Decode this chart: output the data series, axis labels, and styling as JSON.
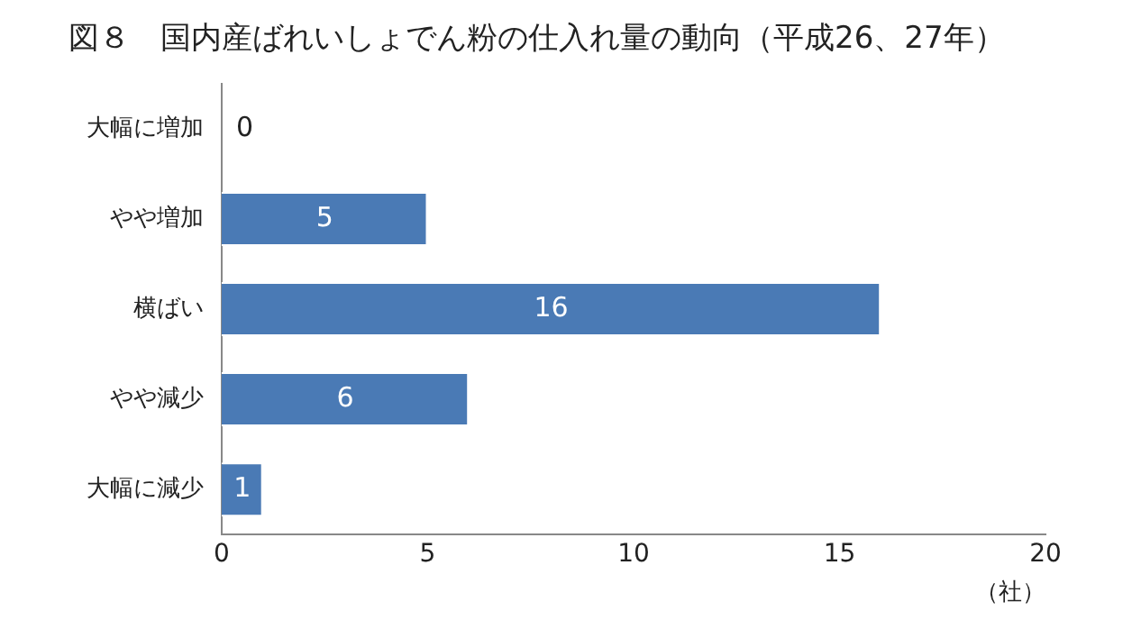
{
  "chart_data": {
    "type": "bar",
    "orientation": "horizontal",
    "title": "図８　国内産ばれいしょでん粉の仕入れ量の動向（平成26、27年）",
    "xlabel": "（社）",
    "categories": [
      "大幅に増加",
      "やや増加",
      "横ばい",
      "やや減少",
      "大幅に減少"
    ],
    "values": [
      0,
      5,
      16,
      6,
      1
    ],
    "color": "#4a7ab5",
    "xlim": [
      0,
      20
    ],
    "xticks": [
      0,
      5,
      10,
      15,
      20
    ],
    "grid": false,
    "legend": false,
    "data_labels": true
  }
}
